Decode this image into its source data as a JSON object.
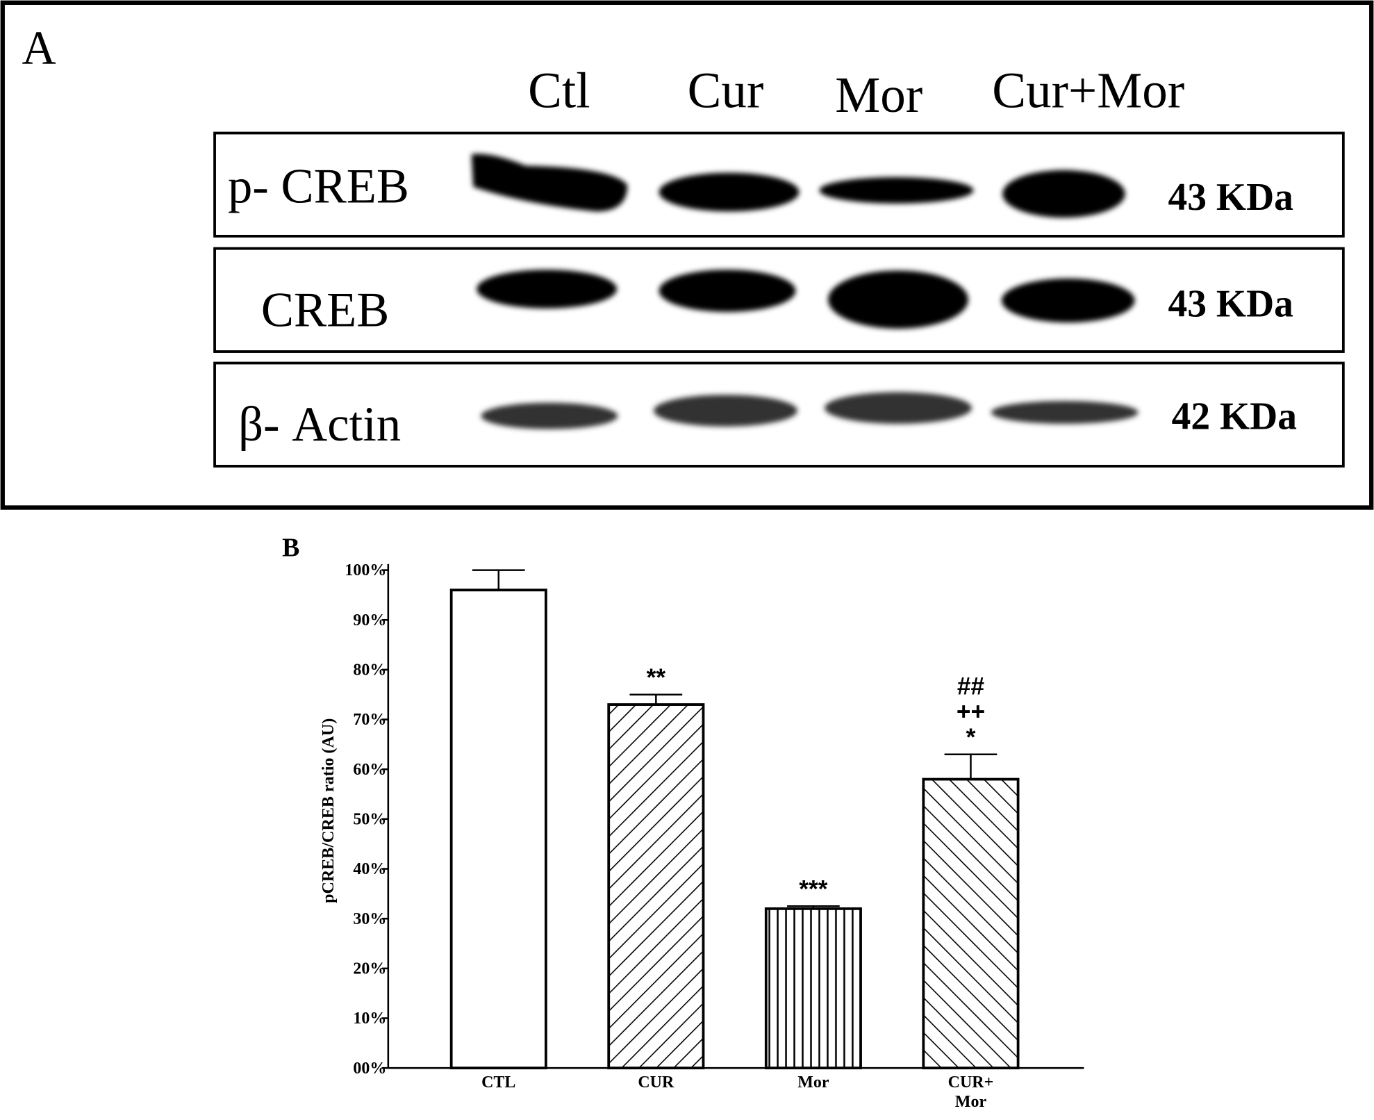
{
  "blot": {
    "label": "A",
    "lanes": [
      "Ctl",
      "Cur",
      "Mor",
      "Cur+Mor"
    ],
    "rows": [
      {
        "protein": "p- CREB",
        "size": "43 KDa"
      },
      {
        "protein": "CREB",
        "size": "43 KDa"
      },
      {
        "protein": "β- Actin",
        "size": "42 KDa"
      }
    ]
  },
  "chart_data": {
    "type": "bar",
    "label": "B",
    "ylabel": "pCREB/CREB ratio (AU)",
    "categories": [
      "CTL",
      "CUR",
      "Mor",
      "CUR+ Mor"
    ],
    "values": [
      96,
      73,
      32,
      58
    ],
    "errors": [
      4,
      2,
      0.5,
      5
    ],
    "significance": [
      null,
      [
        "**"
      ],
      [
        "***"
      ],
      [
        "##",
        "++",
        "*"
      ]
    ],
    "patterns": [
      "none",
      "forward-diagonal",
      "vertical",
      "back-diagonal"
    ],
    "color": "#ffffff",
    "edgecolor": "#000000",
    "ylim": [
      0,
      100
    ],
    "yticks": [
      {
        "value": 0,
        "label": "00%"
      },
      {
        "value": 10,
        "label": "10%"
      },
      {
        "value": 20,
        "label": "20%"
      },
      {
        "value": 30,
        "label": "30%"
      },
      {
        "value": 40,
        "label": "40%"
      },
      {
        "value": 50,
        "label": "50%"
      },
      {
        "value": 60,
        "label": "60%"
      },
      {
        "value": 70,
        "label": "70%"
      },
      {
        "value": 80,
        "label": "80%"
      },
      {
        "value": 90,
        "label": "90%"
      },
      {
        "value": 100,
        "label": "100%"
      }
    ]
  }
}
